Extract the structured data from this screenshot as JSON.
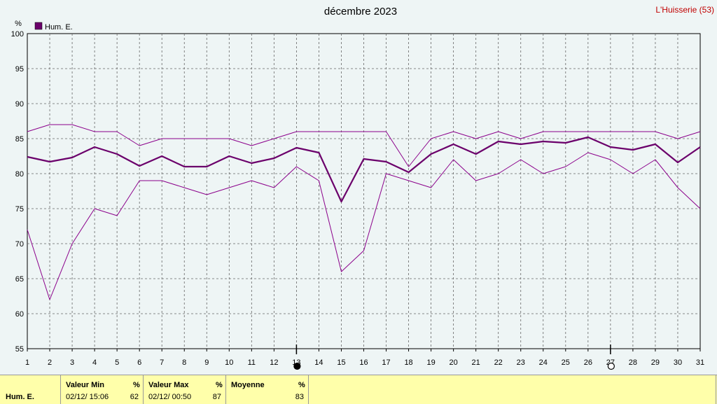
{
  "header": {
    "title": "décembre 2023",
    "station": "L'Huisserie (53)"
  },
  "chart_data": {
    "type": "line",
    "ylabel": "%",
    "ylim": [
      55,
      100
    ],
    "yticks": [
      55,
      60,
      65,
      70,
      75,
      80,
      85,
      90,
      95,
      100
    ],
    "x": [
      1,
      2,
      3,
      4,
      5,
      6,
      7,
      8,
      9,
      10,
      11,
      12,
      13,
      14,
      15,
      16,
      17,
      18,
      19,
      20,
      21,
      22,
      23,
      24,
      25,
      26,
      27,
      28,
      29,
      30,
      31
    ],
    "grid": true,
    "legend": {
      "placement": "top-left",
      "label": "Hum. E.",
      "color": "#6b006b"
    },
    "series": [
      {
        "name": "Hum. E.",
        "role": "mean",
        "color": "#6b006b",
        "values": [
          82.4,
          81.7,
          82.3,
          83.8,
          82.8,
          81.1,
          82.5,
          81.0,
          81.0,
          82.5,
          81.5,
          82.2,
          83.7,
          83.0,
          76.0,
          82.1,
          81.7,
          80.2,
          82.8,
          84.2,
          82.8,
          84.6,
          84.2,
          84.6,
          84.4,
          85.2,
          83.8,
          83.4,
          84.2,
          81.6,
          83.8
        ]
      },
      {
        "role": "max",
        "color": "#8b008b",
        "values": [
          86,
          87,
          87,
          86,
          86,
          84,
          85,
          85,
          85,
          85,
          84,
          85,
          86,
          86,
          86,
          86,
          86,
          81,
          85,
          86,
          85,
          86,
          85,
          86,
          86,
          86,
          86,
          86,
          86,
          85,
          86
        ]
      },
      {
        "role": "min",
        "color": "#8b008b",
        "values": [
          72,
          62,
          70,
          75,
          74,
          79,
          79,
          78,
          77,
          78,
          79,
          78,
          81,
          79,
          66,
          69,
          80,
          79,
          78,
          82,
          79,
          80,
          82,
          80,
          81,
          83,
          82,
          80,
          82,
          78,
          75
        ]
      }
    ],
    "moon_markers": [
      {
        "day": 13,
        "phase": "new-moon"
      },
      {
        "day": 27,
        "phase": "full-moon"
      }
    ]
  },
  "stats": {
    "row_label": "Hum. E.",
    "min": {
      "label": "Valeur Min",
      "unit": "%",
      "when": "02/12/  15:06",
      "value": "62"
    },
    "max": {
      "label": "Valeur Max",
      "unit": "%",
      "when": "02/12/  00:50",
      "value": "87"
    },
    "avg": {
      "label": "Moyenne",
      "unit": "%",
      "value": "83"
    }
  }
}
